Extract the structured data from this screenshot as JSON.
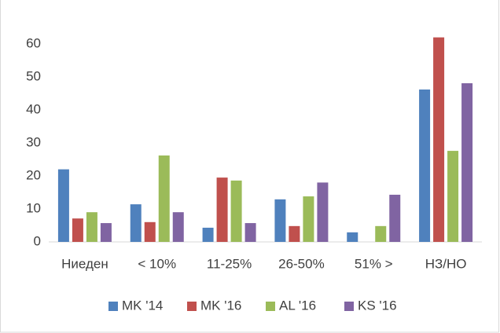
{
  "chart_data": {
    "type": "bar",
    "categories": [
      "Ниеден",
      "< 10%",
      "11-25%",
      "26-50%",
      "51% >",
      "НЗ/НО"
    ],
    "series": [
      {
        "name": "MK '14",
        "color": "#4f81bd",
        "values": [
          22,
          11.4,
          4.3,
          12.9,
          2.9,
          46.2
        ]
      },
      {
        "name": "MK '16",
        "color": "#c0504d",
        "values": [
          7.1,
          6,
          19.5,
          4.8,
          null,
          62
        ]
      },
      {
        "name": "AL '16",
        "color": "#9bbb59",
        "values": [
          9,
          26.2,
          18.6,
          13.8,
          4.8,
          27.6
        ]
      },
      {
        "name": "KS '16",
        "color": "#8064a2",
        "values": [
          5.7,
          9,
          5.7,
          18,
          14.3,
          48.1
        ]
      }
    ],
    "ylim": [
      0,
      65
    ],
    "yticks": [
      0,
      10,
      20,
      30,
      40,
      50,
      60
    ],
    "grid": false,
    "legend": "bottom"
  }
}
